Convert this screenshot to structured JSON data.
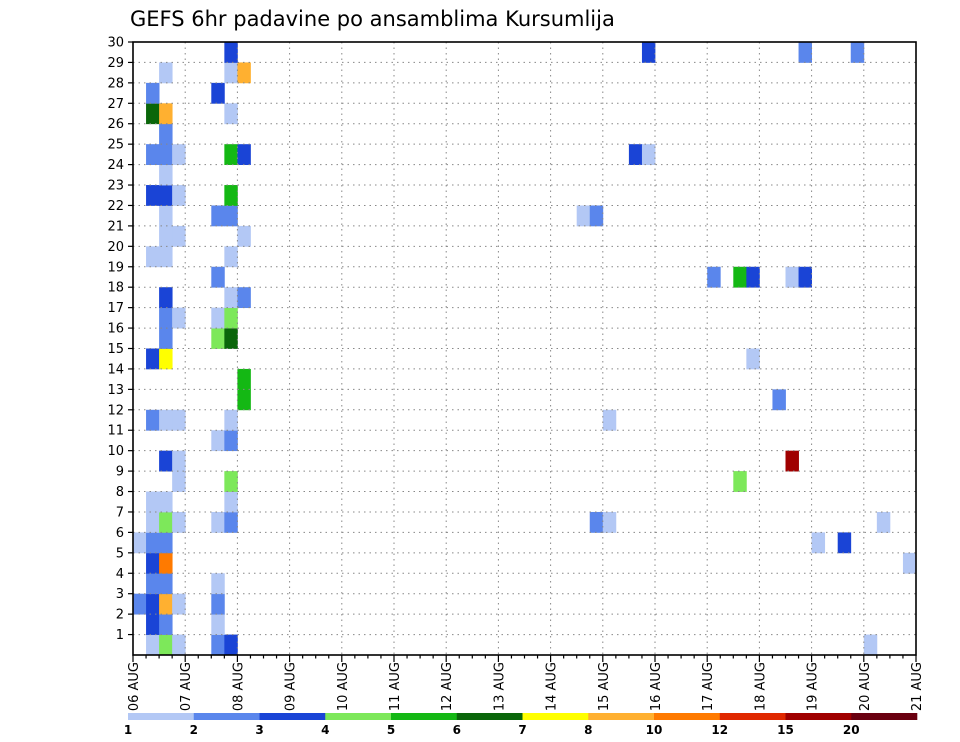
{
  "chart_data": {
    "type": "heatmap",
    "title": "GEFS 6hr padavine po ansamblima Kursumlija",
    "x_ticks": [
      "06 AUG",
      "07 AUG",
      "08 AUG",
      "09 AUG",
      "10 AUG",
      "11 AUG",
      "12 AUG",
      "13 AUG",
      "14 AUG",
      "15 AUG",
      "16 AUG",
      "17 AUG",
      "18 AUG",
      "19 AUG",
      "20 AUG",
      "21 AUG"
    ],
    "y_ticks": [
      "1",
      "2",
      "3",
      "4",
      "5",
      "6",
      "7",
      "8",
      "9",
      "10",
      "11",
      "12",
      "13",
      "14",
      "15",
      "16",
      "17",
      "18",
      "19",
      "20",
      "21",
      "22",
      "23",
      "24",
      "25",
      "26",
      "27",
      "28",
      "29",
      "30"
    ],
    "x_range": [
      "06 AUG 00Z",
      "21 AUG 00Z"
    ],
    "y_range": [
      0,
      30
    ],
    "grid": true,
    "colorbar": {
      "labels": [
        "1",
        "2",
        "3",
        "4",
        "5",
        "6",
        "7",
        "8",
        "10",
        "12",
        "15",
        "20"
      ],
      "colors": [
        "#b3c8f5",
        "#5a86ec",
        "#1a44d6",
        "#7de85a",
        "#14b814",
        "#0a660a",
        "#ffff00",
        "#ffb030",
        "#ff7a00",
        "#e02800",
        "#a00000",
        "#6a0010"
      ]
    },
    "cells_note": "each cell: [time step (6-hourly, 0 = 06 AUG 00Z), ensemble member, color index]",
    "cells": [
      [
        1,
        1,
        0
      ],
      [
        2,
        1,
        3
      ],
      [
        3,
        1,
        0
      ],
      [
        6,
        1,
        1
      ],
      [
        7,
        1,
        2
      ],
      [
        56,
        1,
        0
      ],
      [
        1,
        2,
        2
      ],
      [
        2,
        2,
        1
      ],
      [
        6,
        2,
        0
      ],
      [
        0,
        3,
        1
      ],
      [
        1,
        3,
        2
      ],
      [
        2,
        3,
        7
      ],
      [
        3,
        3,
        0
      ],
      [
        6,
        3,
        1
      ],
      [
        1,
        4,
        1
      ],
      [
        2,
        4,
        1
      ],
      [
        6,
        4,
        0
      ],
      [
        1,
        5,
        2
      ],
      [
        2,
        5,
        8
      ],
      [
        59,
        5,
        0
      ],
      [
        0,
        6,
        0
      ],
      [
        1,
        6,
        1
      ],
      [
        2,
        6,
        1
      ],
      [
        52,
        6,
        0
      ],
      [
        54,
        6,
        2
      ],
      [
        1,
        7,
        0
      ],
      [
        2,
        7,
        3
      ],
      [
        3,
        7,
        0
      ],
      [
        6,
        7,
        0
      ],
      [
        7,
        7,
        1
      ],
      [
        35,
        7,
        1
      ],
      [
        36,
        7,
        0
      ],
      [
        57,
        7,
        0
      ],
      [
        1,
        8,
        0
      ],
      [
        2,
        8,
        0
      ],
      [
        7,
        8,
        0
      ],
      [
        3,
        9,
        0
      ],
      [
        7,
        9,
        3
      ],
      [
        46,
        9,
        3
      ],
      [
        2,
        10,
        2
      ],
      [
        3,
        10,
        0
      ],
      [
        50,
        10,
        10
      ],
      [
        6,
        11,
        0
      ],
      [
        7,
        11,
        1
      ],
      [
        1,
        12,
        1
      ],
      [
        2,
        12,
        0
      ],
      [
        3,
        12,
        0
      ],
      [
        7,
        12,
        0
      ],
      [
        36,
        12,
        0
      ],
      [
        8,
        13,
        4
      ],
      [
        49,
        13,
        1
      ],
      [
        8,
        14,
        4
      ],
      [
        1,
        15,
        2
      ],
      [
        2,
        15,
        6
      ],
      [
        47,
        15,
        0
      ],
      [
        2,
        16,
        1
      ],
      [
        6,
        16,
        3
      ],
      [
        7,
        16,
        5
      ],
      [
        2,
        17,
        1
      ],
      [
        3,
        17,
        0
      ],
      [
        6,
        17,
        0
      ],
      [
        7,
        17,
        3
      ],
      [
        2,
        18,
        2
      ],
      [
        7,
        18,
        0
      ],
      [
        8,
        18,
        1
      ],
      [
        6,
        19,
        1
      ],
      [
        44,
        19,
        1
      ],
      [
        46,
        19,
        4
      ],
      [
        47,
        19,
        2
      ],
      [
        50,
        19,
        0
      ],
      [
        51,
        19,
        2
      ],
      [
        1,
        20,
        0
      ],
      [
        2,
        20,
        0
      ],
      [
        7,
        20,
        0
      ],
      [
        2,
        21,
        0
      ],
      [
        3,
        21,
        0
      ],
      [
        8,
        21,
        0
      ],
      [
        2,
        22,
        0
      ],
      [
        6,
        22,
        1
      ],
      [
        7,
        22,
        1
      ],
      [
        34,
        22,
        0
      ],
      [
        35,
        22,
        1
      ],
      [
        1,
        23,
        2
      ],
      [
        2,
        23,
        2
      ],
      [
        3,
        23,
        0
      ],
      [
        7,
        23,
        4
      ],
      [
        2,
        24,
        0
      ],
      [
        1,
        25,
        1
      ],
      [
        2,
        25,
        1
      ],
      [
        3,
        25,
        0
      ],
      [
        7,
        25,
        4
      ],
      [
        8,
        25,
        2
      ],
      [
        38,
        25,
        2
      ],
      [
        39,
        25,
        0
      ],
      [
        2,
        26,
        1
      ],
      [
        1,
        27,
        5
      ],
      [
        2,
        27,
        7
      ],
      [
        7,
        27,
        0
      ],
      [
        1,
        28,
        1
      ],
      [
        6,
        28,
        2
      ],
      [
        2,
        29,
        0
      ],
      [
        7,
        29,
        0
      ],
      [
        8,
        29,
        7
      ],
      [
        7,
        30,
        2
      ],
      [
        39,
        30,
        2
      ],
      [
        51,
        30,
        1
      ],
      [
        55,
        30,
        1
      ]
    ]
  }
}
